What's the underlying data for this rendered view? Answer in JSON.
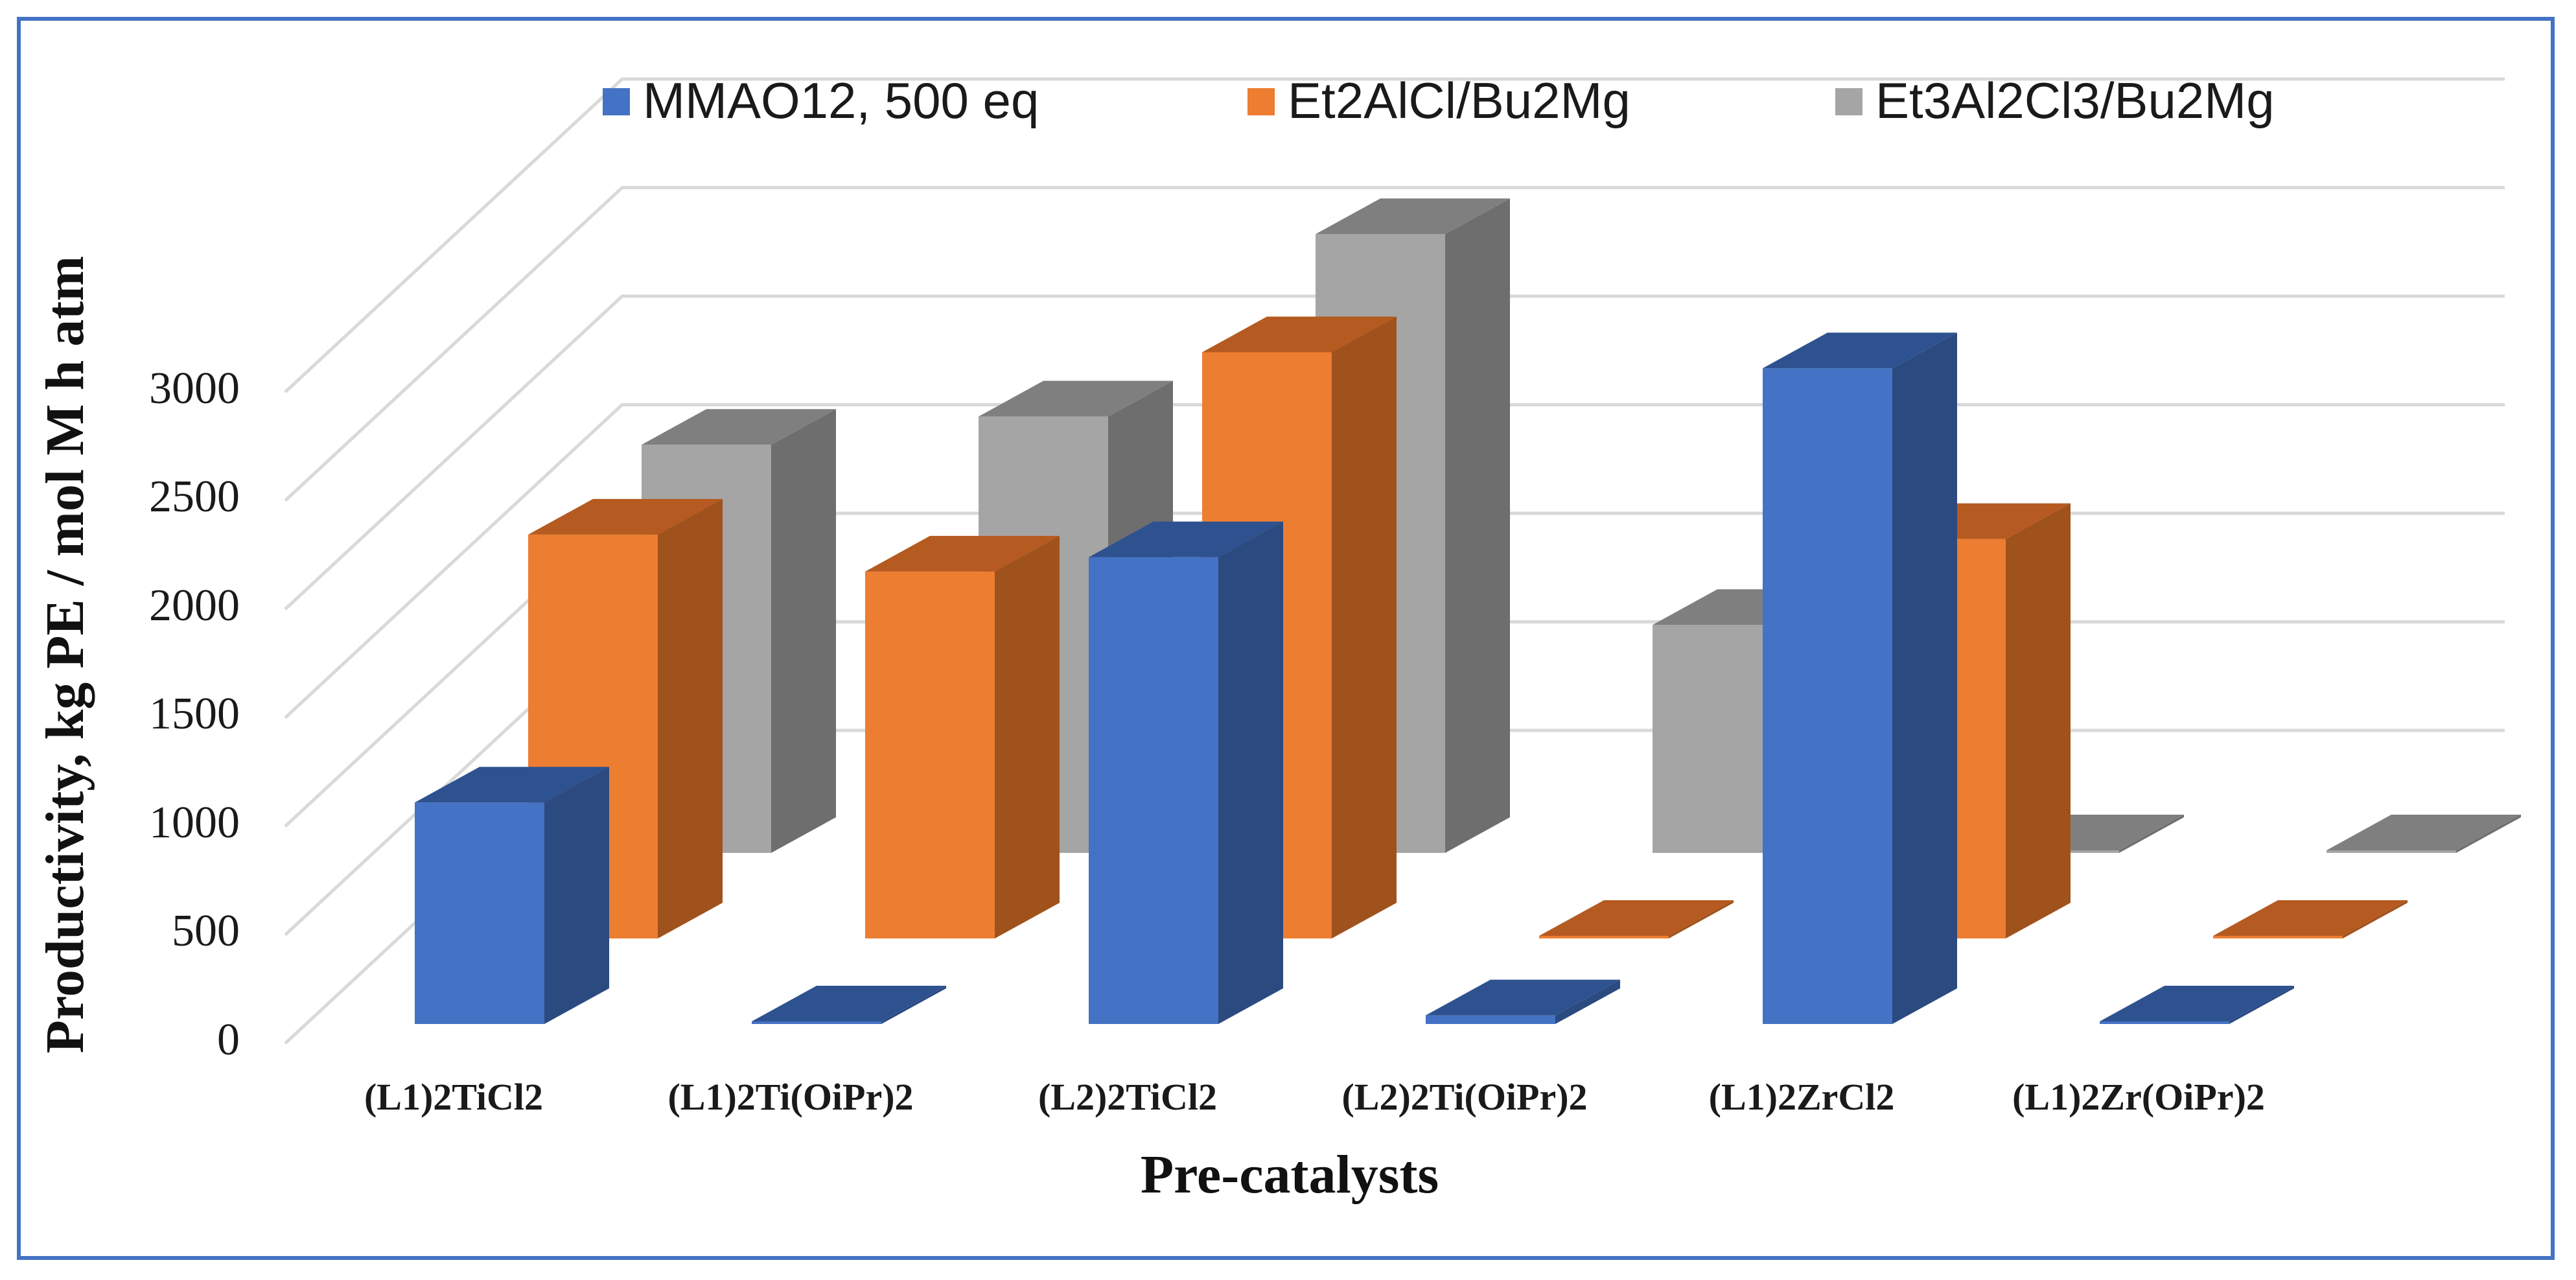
{
  "colors": {
    "series": [
      {
        "front": "#4472c4",
        "side": "#2b4a80",
        "top": "#2e5290"
      },
      {
        "front": "#ed7d31",
        "side": "#a0521c",
        "top": "#b55a20"
      },
      {
        "front": "#a5a5a5",
        "side": "#6e6e6e",
        "top": "#7f7f7f"
      }
    ],
    "frame": "#4472c4"
  },
  "chart_data": {
    "type": "bar",
    "variant": "3d-column",
    "categories": [
      "(L1)2TiCl2",
      "(L1)2Ti(OiPr)2",
      "(L2)2TiCl2",
      "(L2)2Ti(OiPr)2",
      "(L1)2ZrCl2",
      "(L1)2Zr(OiPr)2"
    ],
    "series": [
      {
        "name": "MMAO12, 500 eq",
        "values": [
          1020,
          0,
          2150,
          40,
          3020,
          0
        ]
      },
      {
        "name": "Et2AlCl/Bu2Mg",
        "values": [
          1860,
          1690,
          2700,
          0,
          1840,
          0
        ]
      },
      {
        "name": "Et3Al2Cl3/Bu2Mg",
        "values": [
          1880,
          2010,
          2850,
          1050,
          0,
          0
        ]
      }
    ],
    "xlabel": "Pre-catalysts",
    "ylabel": "Productivity, kg PE / mol M h atm",
    "yticks": [
      "0",
      "500",
      "1000",
      "1500",
      "2000",
      "2500",
      "3000"
    ],
    "ylim": [
      0,
      3000
    ],
    "grid": true,
    "legend": "top"
  }
}
